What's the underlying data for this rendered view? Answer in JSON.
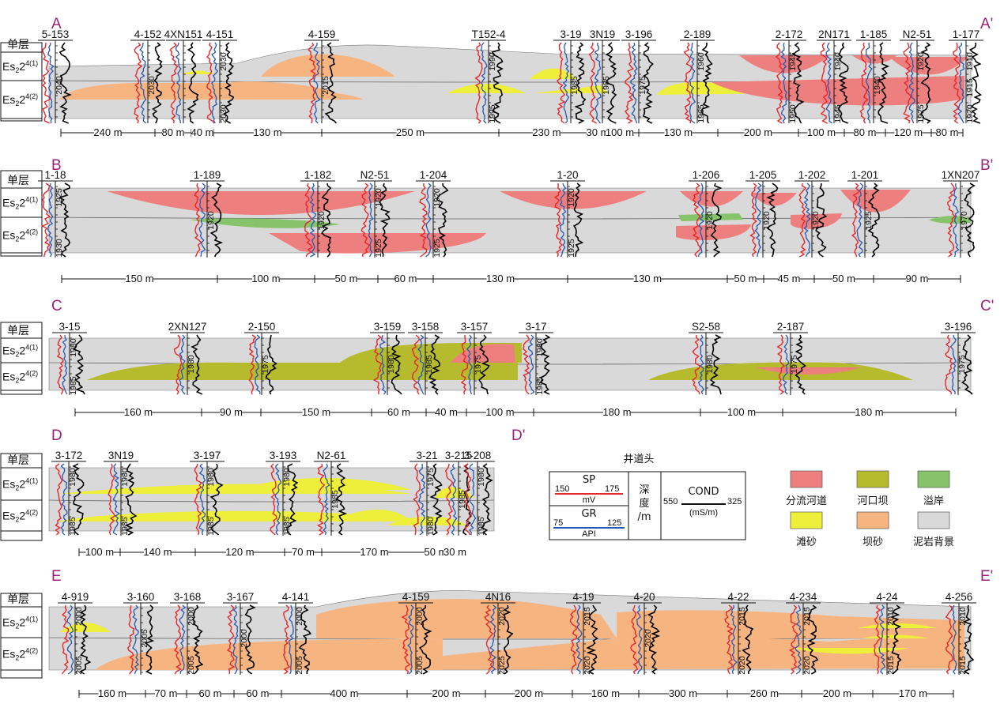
{
  "colors": {
    "background": "#d9d9d9",
    "distributary_channel": "#ee7f7f",
    "mouth_bar": "#b5bb2d",
    "crevasse_splay": "#86c36a",
    "beach_sand": "#eeef3a",
    "bar_sand": "#f6b481",
    "sp_curve": "#e8262a",
    "gr_curve": "#2457b6",
    "cond_curve": "#000000",
    "letter": "#9b1f7c"
  },
  "header": {
    "layer_title": "单层",
    "layer1": {
      "base": "Es",
      "sub": "2",
      "rest": "2",
      "sup": "4(1)"
    },
    "layer2": {
      "base": "Es",
      "sub": "2",
      "rest": "2",
      "sup": "4(2)"
    }
  },
  "sections": [
    {
      "id": "A",
      "start_label": "A",
      "end_label": "A'",
      "wells": [
        {
          "name": "5-153",
          "depths": [
            "2040"
          ]
        },
        {
          "name": "4-152",
          "depths": [
            "2030"
          ]
        },
        {
          "name": "4XN151",
          "depths": []
        },
        {
          "name": "4-151",
          "depths": [
            "2030",
            "2030"
          ]
        },
        {
          "name": "4-159",
          "depths": [
            "2015"
          ]
        },
        {
          "name": "T152-4",
          "depths": [
            "1990",
            "1995"
          ]
        },
        {
          "name": "3-19",
          "depths": [
            "1985"
          ]
        },
        {
          "name": "3N19",
          "depths": [
            "1985"
          ]
        },
        {
          "name": "3-196",
          "depths": [
            "1975"
          ]
        },
        {
          "name": "2-189",
          "depths": [
            "1960",
            "1965"
          ]
        },
        {
          "name": "2-172",
          "depths": [
            "1945",
            "1950"
          ]
        },
        {
          "name": "2N171",
          "depths": [
            "1940",
            "1945"
          ]
        },
        {
          "name": "1-185",
          "depths": [
            "1940"
          ]
        },
        {
          "name": "N2-51",
          "depths": [
            "1920",
            "1925"
          ]
        },
        {
          "name": "1-177",
          "depths": [
            "1910",
            "1915",
            "1920"
          ]
        }
      ],
      "distances": [
        "240 m",
        "80 m",
        "40 m",
        "130 m",
        "250 m",
        "230 m",
        "30 m",
        "100 m",
        "130 m",
        "200 m",
        "100 m",
        "80 m",
        "120 m",
        "80 m"
      ]
    },
    {
      "id": "B",
      "start_label": "B",
      "end_label": "B'",
      "wells": [
        {
          "name": "1-18",
          "depths": [
            "1925",
            "1930"
          ]
        },
        {
          "name": "1-189",
          "depths": [
            "1920"
          ]
        },
        {
          "name": "1-182",
          "depths": [
            "1920"
          ]
        },
        {
          "name": "N2-51",
          "depths": [
            "1920",
            "1925"
          ]
        },
        {
          "name": "1-204",
          "depths": [
            "1920",
            "1925"
          ]
        },
        {
          "name": "1-20",
          "depths": [
            "1920",
            "1925"
          ]
        },
        {
          "name": "1-206",
          "depths": [
            "1920"
          ]
        },
        {
          "name": "1-205",
          "depths": [
            "1920"
          ]
        },
        {
          "name": "1-202",
          "depths": [
            "1920"
          ]
        },
        {
          "name": "1-201",
          "depths": [
            "1925"
          ]
        },
        {
          "name": "1XN207",
          "depths": [
            "1970"
          ]
        }
      ],
      "distances": [
        "150 m",
        "100 m",
        "50 m",
        "60 m",
        "130 m",
        "130 m",
        "50 m",
        "45 m",
        "50 m",
        "90 m"
      ]
    },
    {
      "id": "C",
      "start_label": "C",
      "end_label": "C'",
      "wells": [
        {
          "name": "3-15",
          "depths": [
            "1980",
            "1985"
          ]
        },
        {
          "name": "2XN127",
          "depths": [
            "1980"
          ]
        },
        {
          "name": "2-150",
          "depths": [
            "1975"
          ]
        },
        {
          "name": "3-159",
          "depths": [
            "1980"
          ]
        },
        {
          "name": "3-158",
          "depths": [
            "1985"
          ]
        },
        {
          "name": "3-157",
          "depths": [
            "1975"
          ]
        },
        {
          "name": "3-17",
          "depths": [
            "1980",
            "1985"
          ]
        },
        {
          "name": "S2-58",
          "depths": [
            "1980"
          ]
        },
        {
          "name": "2-187",
          "depths": [
            "1975"
          ]
        },
        {
          "name": "3-196",
          "depths": [
            "1975"
          ]
        }
      ],
      "distances": [
        "160 m",
        "90 m",
        "150 m",
        "60 m",
        "40 m",
        "100 m",
        "180 m",
        "100 m",
        "180 m"
      ]
    },
    {
      "id": "D",
      "start_label": "D",
      "end_label": "D'",
      "wells": [
        {
          "name": "3-172",
          "depths": [
            "1980",
            "1985"
          ]
        },
        {
          "name": "3N19",
          "depths": [
            "1980",
            "1985"
          ]
        },
        {
          "name": "3-197",
          "depths": [
            "1980",
            "1985"
          ]
        },
        {
          "name": "3-193",
          "depths": [
            "1980",
            "1985"
          ]
        },
        {
          "name": "N2-61",
          "depths": [
            "1985"
          ]
        },
        {
          "name": "3-21",
          "depths": [
            "1975",
            "1980"
          ]
        },
        {
          "name": "3-215",
          "depths": [
            "1985"
          ]
        },
        {
          "name": "3-208",
          "depths": [
            "1980",
            "1985"
          ]
        }
      ],
      "distances": [
        "100 m",
        "140 m",
        "120 m",
        "70 m",
        "170 m",
        "50 m",
        "30 m"
      ]
    },
    {
      "id": "E",
      "start_label": "E",
      "end_label": "E'",
      "wells": [
        {
          "name": "4-919",
          "depths": [
            "2000",
            "2005"
          ]
        },
        {
          "name": "3-160",
          "depths": [
            "2005"
          ]
        },
        {
          "name": "3-168",
          "depths": [
            "2000",
            "2005"
          ]
        },
        {
          "name": "3-167",
          "depths": [
            "2000"
          ]
        },
        {
          "name": "4-141",
          "depths": [
            "2000",
            "2005"
          ]
        },
        {
          "name": "4-159",
          "depths": [
            "2000",
            "2005"
          ]
        },
        {
          "name": "4N16",
          "depths": [
            "2020",
            "2025"
          ]
        },
        {
          "name": "4-19",
          "depths": [
            "2015",
            "2020"
          ]
        },
        {
          "name": "4-20",
          "depths": [
            "2020"
          ]
        },
        {
          "name": "4-22",
          "depths": [
            "2015",
            "2020"
          ]
        },
        {
          "name": "4-234",
          "depths": [
            "2015",
            "2020"
          ]
        },
        {
          "name": "4-24",
          "depths": [
            "2010",
            "2015"
          ]
        },
        {
          "name": "4-256",
          "depths": [
            "2010",
            "2015"
          ]
        }
      ],
      "distances": [
        "160 m",
        "70 m",
        "60 m",
        "60 m",
        "400 m",
        "200 m",
        "200 m",
        "160 m",
        "300 m",
        "260 m",
        "200 m",
        "170 m"
      ]
    }
  ],
  "legend": {
    "title": "井道头",
    "sp": {
      "name": "SP",
      "min": "150",
      "max": "175",
      "unit": "mV"
    },
    "gr": {
      "name": "GR",
      "min": "75",
      "max": "125",
      "unit": "API"
    },
    "depth_label": [
      "深",
      "度",
      "/m"
    ],
    "cond": {
      "name": "COND",
      "min": "550",
      "max": "325",
      "unit": "(mS/m)"
    },
    "facies": [
      {
        "label": "分流河道",
        "color_key": "distributary_channel"
      },
      {
        "label": "河口坝",
        "color_key": "mouth_bar"
      },
      {
        "label": "溢岸",
        "color_key": "crevasse_splay"
      },
      {
        "label": "滩砂",
        "color_key": "beach_sand"
      },
      {
        "label": "坝砂",
        "color_key": "bar_sand"
      },
      {
        "label": "泥岩背景",
        "color_key": "background"
      }
    ]
  }
}
